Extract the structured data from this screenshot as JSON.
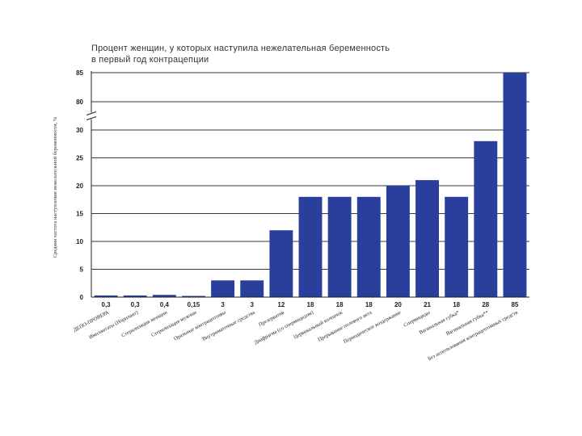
{
  "chart_data": {
    "type": "bar",
    "title": [
      "Процент женщин, у которых наступила нежелательная беременность",
      "в первый год контрацепции"
    ],
    "ylabel": "Средняя частота наступления нежелательной беременности, %",
    "xlabel": "",
    "yticks_lower": [
      0,
      5,
      10,
      15,
      20,
      25,
      30
    ],
    "yticks_upper": [
      80,
      85
    ],
    "ylim": [
      0,
      85
    ],
    "axis_break": [
      30,
      80
    ],
    "grid": true,
    "categories": [
      "ДЕПО-ПРОВЕРА",
      "Имплантаты (Норплант)",
      "Стерилизация женщин",
      "Стерилизация мужчин",
      "Оральные контрацептивы",
      "Внутриматочные средства",
      "Презерватив",
      "Диафрагма (со спермицидом)",
      "Цервикальный колпачок",
      "Прерывание полового акта",
      "Периодическое воздержание",
      "Спермициды",
      "Вагинальная губка*",
      "Вагинальная губка**",
      "Без использования контрацептивных средств"
    ],
    "value_labels": [
      "0,3",
      "0,3",
      "0,4",
      "0,15",
      "3",
      "3",
      "12",
      "18",
      "18",
      "18",
      "20",
      "21",
      "18",
      "28",
      "85"
    ],
    "values": [
      0.3,
      0.3,
      0.4,
      0.15,
      3,
      3,
      12,
      18,
      18,
      18,
      20,
      21,
      18,
      28,
      85
    ],
    "bar_color": "#2a3f9c",
    "grid_color": "#3a3a3a"
  }
}
